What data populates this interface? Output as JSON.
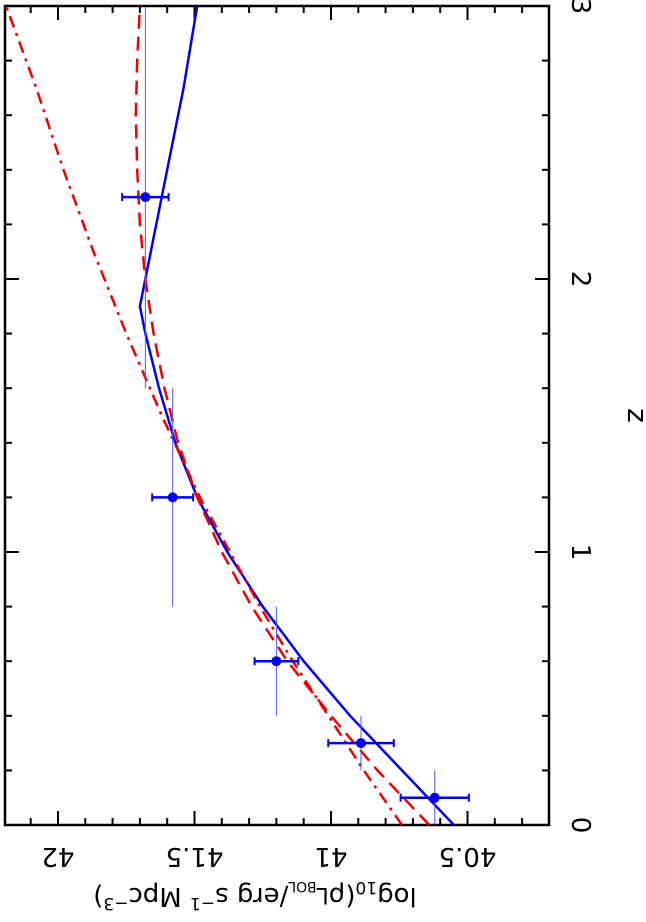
{
  "chart_data": {
    "type": "scatter",
    "orientation": "rotated 90deg (x-axis z runs vertically on right, y-axis labels upside-down at bottom)",
    "xlabel": "z",
    "ylabel": "log10(ρ_L_BOL / erg s^-1 Mpc^-3)",
    "xlim": [
      0,
      3
    ],
    "ylim": [
      40.32,
      42.2
    ],
    "x_ticks": [
      0,
      1,
      2,
      3
    ],
    "y_ticks": [
      40.5,
      41,
      41.5,
      42
    ],
    "x_tick_labels": [
      "0",
      "1",
      "2",
      "3"
    ],
    "y_tick_labels": [
      "40.5",
      "41",
      "41.5",
      "42"
    ],
    "grid": false,
    "series": [
      {
        "name": "data",
        "style": "points with error bars",
        "color": "#0000ee",
        "points": [
          {
            "z": 0.1,
            "zlo": 0.0,
            "zhi": 0.2,
            "value": 40.62,
            "err": 0.125
          },
          {
            "z": 0.3,
            "zlo": 0.2,
            "zhi": 0.4,
            "value": 40.89,
            "err": 0.12
          },
          {
            "z": 0.6,
            "zlo": 0.4,
            "zhi": 0.8,
            "value": 41.2,
            "err": 0.08
          },
          {
            "z": 1.2,
            "zlo": 0.8,
            "zhi": 1.6,
            "value": 41.58,
            "err": 0.075
          },
          {
            "z": 2.3,
            "zlo": 1.6,
            "zhi": 3.0,
            "value": 41.68,
            "err": 0.085
          }
        ]
      },
      {
        "name": "blue solid fit",
        "style": "solid",
        "color": "#0000ee",
        "x": [
          0,
          0.2,
          0.4,
          0.6,
          0.8,
          1.0,
          1.2,
          1.4,
          1.6,
          1.8,
          1.9,
          2.3,
          2.7,
          3.0
        ],
        "values": [
          40.55,
          40.74,
          40.93,
          41.1,
          41.25,
          41.38,
          41.49,
          41.57,
          41.63,
          41.68,
          41.7,
          41.62,
          41.54,
          41.49
        ]
      },
      {
        "name": "red dashed",
        "style": "dashed",
        "color": "#ee0000",
        "x": [
          0,
          0.2,
          0.4,
          0.6,
          0.8,
          1.0,
          1.2,
          1.4,
          1.6,
          1.8,
          2.0,
          2.2,
          2.4,
          2.6,
          2.8,
          3.0
        ],
        "values": [
          40.64,
          40.83,
          41.0,
          41.16,
          41.29,
          41.4,
          41.49,
          41.56,
          41.61,
          41.65,
          41.68,
          41.7,
          41.71,
          41.715,
          41.71,
          41.7
        ]
      },
      {
        "name": "red dot-dash",
        "style": "dash-dot",
        "color": "#ee0000",
        "x": [
          0,
          0.2,
          0.4,
          0.6,
          0.8,
          1.0,
          1.2,
          1.5,
          1.8,
          2.1,
          2.4,
          2.7,
          3.0
        ],
        "values": [
          40.74,
          40.88,
          41.01,
          41.14,
          41.26,
          41.37,
          41.48,
          41.62,
          41.75,
          41.87,
          41.98,
          42.08,
          42.19
        ]
      }
    ]
  }
}
